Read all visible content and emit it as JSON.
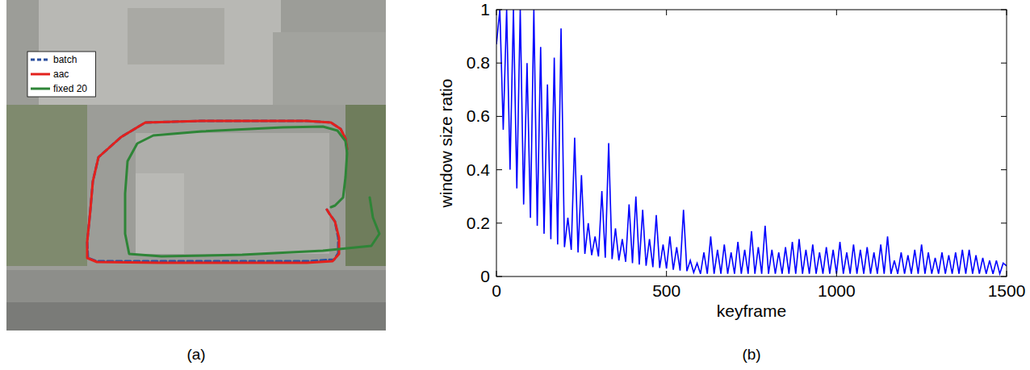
{
  "chart_data": [
    {
      "type": "line",
      "caption": "(a)",
      "tick_labels": false,
      "legend": "upper left",
      "grid": false,
      "xlim": [
        0,
        470
      ],
      "ylim": [
        0,
        410
      ],
      "series": [
        {
          "name": "batch",
          "color": "#2b4f9e",
          "line_style": "dashed",
          "x": [
            397,
            400,
            407,
            411,
            411,
            406,
            372,
            292,
            192,
            112,
            101,
            100,
            104,
            107,
            114,
            142,
            172,
            242,
            322,
            372,
            402,
            414,
            420,
            422
          ],
          "values": [
            150,
            145,
            135,
            115,
            96,
            88,
            86,
            86,
            86,
            86,
            90,
            110,
            150,
            185,
            215,
            240,
            258,
            260,
            260,
            260,
            258,
            250,
            238,
            225
          ]
        },
        {
          "name": "aac",
          "color": "#e3211c",
          "line_style": "solid",
          "x": [
            397,
            400,
            407,
            412,
            412,
            404,
            372,
            292,
            192,
            112,
            100,
            100,
            104,
            107,
            114,
            142,
            172,
            242,
            322,
            372,
            402,
            414,
            420,
            422
          ],
          "values": [
            150,
            145,
            135,
            115,
            95,
            86,
            84,
            84,
            84,
            85,
            90,
            110,
            150,
            185,
            215,
            240,
            258,
            260,
            260,
            260,
            258,
            250,
            238,
            225
          ]
        },
        {
          "name": "fixed 20",
          "color": "#2e8537",
          "line_style": "solid",
          "x": [
            402,
            407,
            417,
            420,
            422,
            420,
            410,
            392,
            342,
            242,
            182,
            162,
            150,
            147,
            147,
            152,
            192,
            292,
            392,
            452,
            462,
            454,
            450
          ],
          "values": [
            153,
            155,
            165,
            190,
            220,
            235,
            248,
            253,
            252,
            247,
            242,
            232,
            210,
            170,
            120,
            95,
            92,
            94,
            99,
            105,
            120,
            140,
            165
          ]
        }
      ]
    },
    {
      "type": "line",
      "caption": "(b)",
      "xlabel": "keyframe",
      "ylabel": "window size ratio",
      "grid": false,
      "xlim": [
        0,
        1500
      ],
      "ylim": [
        0,
        1
      ],
      "xticks": [
        0,
        500,
        1000,
        1500
      ],
      "yticks": [
        0,
        0.2,
        0.4,
        0.6,
        0.8,
        1
      ],
      "x": [
        0,
        10,
        20,
        30,
        40,
        50,
        60,
        70,
        80,
        90,
        100,
        110,
        120,
        130,
        140,
        150,
        160,
        170,
        180,
        190,
        200,
        210,
        220,
        230,
        240,
        250,
        260,
        270,
        280,
        290,
        300,
        310,
        320,
        330,
        340,
        350,
        360,
        370,
        380,
        390,
        400,
        410,
        420,
        430,
        440,
        450,
        460,
        470,
        480,
        490,
        500,
        510,
        520,
        530,
        540,
        550,
        560,
        570,
        580,
        590,
        600,
        610,
        620,
        630,
        640,
        650,
        660,
        670,
        680,
        690,
        700,
        710,
        720,
        730,
        740,
        750,
        760,
        770,
        780,
        790,
        800,
        810,
        820,
        830,
        840,
        850,
        860,
        870,
        880,
        890,
        900,
        910,
        920,
        930,
        940,
        950,
        960,
        970,
        980,
        990,
        1000,
        1010,
        1020,
        1030,
        1040,
        1050,
        1060,
        1070,
        1080,
        1090,
        1100,
        1110,
        1120,
        1130,
        1140,
        1150,
        1160,
        1170,
        1180,
        1190,
        1200,
        1210,
        1220,
        1230,
        1240,
        1250,
        1260,
        1270,
        1280,
        1290,
        1300,
        1310,
        1320,
        1330,
        1340,
        1350,
        1360,
        1370,
        1380,
        1390,
        1400,
        1410,
        1420,
        1430,
        1440,
        1450,
        1460,
        1470,
        1480,
        1490,
        1500
      ],
      "series": [
        {
          "color": "#0000ff",
          "line_style": "solid",
          "values": [
            0.87,
            1.0,
            0.55,
            1.0,
            0.4,
            1.0,
            0.33,
            1.0,
            0.27,
            0.8,
            0.22,
            1.0,
            0.19,
            0.86,
            0.16,
            0.72,
            0.14,
            0.82,
            0.12,
            0.93,
            0.11,
            0.22,
            0.1,
            0.52,
            0.09,
            0.38,
            0.085,
            0.2,
            0.08,
            0.15,
            0.075,
            0.32,
            0.07,
            0.5,
            0.065,
            0.18,
            0.06,
            0.14,
            0.055,
            0.27,
            0.05,
            0.3,
            0.045,
            0.25,
            0.04,
            0.14,
            0.035,
            0.23,
            0.032,
            0.12,
            0.03,
            0.15,
            0.025,
            0.11,
            0.022,
            0.25,
            0.02,
            0.06,
            0.015,
            0.05,
            0.01,
            0.09,
            0.01,
            0.15,
            0.01,
            0.1,
            0.01,
            0.12,
            0.01,
            0.09,
            0.01,
            0.13,
            0.01,
            0.1,
            0.01,
            0.17,
            0.01,
            0.11,
            0.01,
            0.19,
            0.01,
            0.1,
            0.01,
            0.09,
            0.01,
            0.11,
            0.01,
            0.13,
            0.01,
            0.14,
            0.01,
            0.1,
            0.01,
            0.12,
            0.01,
            0.09,
            0.01,
            0.11,
            0.01,
            0.1,
            0.01,
            0.13,
            0.01,
            0.09,
            0.01,
            0.12,
            0.01,
            0.1,
            0.01,
            0.11,
            0.01,
            0.09,
            0.01,
            0.12,
            0.01,
            0.15,
            0.01,
            0.06,
            0.01,
            0.09,
            0.01,
            0.08,
            0.01,
            0.1,
            0.01,
            0.12,
            0.01,
            0.09,
            0.01,
            0.07,
            0.01,
            0.09,
            0.01,
            0.08,
            0.01,
            0.09,
            0.01,
            0.1,
            0.01,
            0.1,
            0.01,
            0.08,
            0.01,
            0.07,
            0.01,
            0.06,
            0.01,
            0.06,
            0.01,
            0.05,
            0.04
          ]
        }
      ]
    }
  ]
}
